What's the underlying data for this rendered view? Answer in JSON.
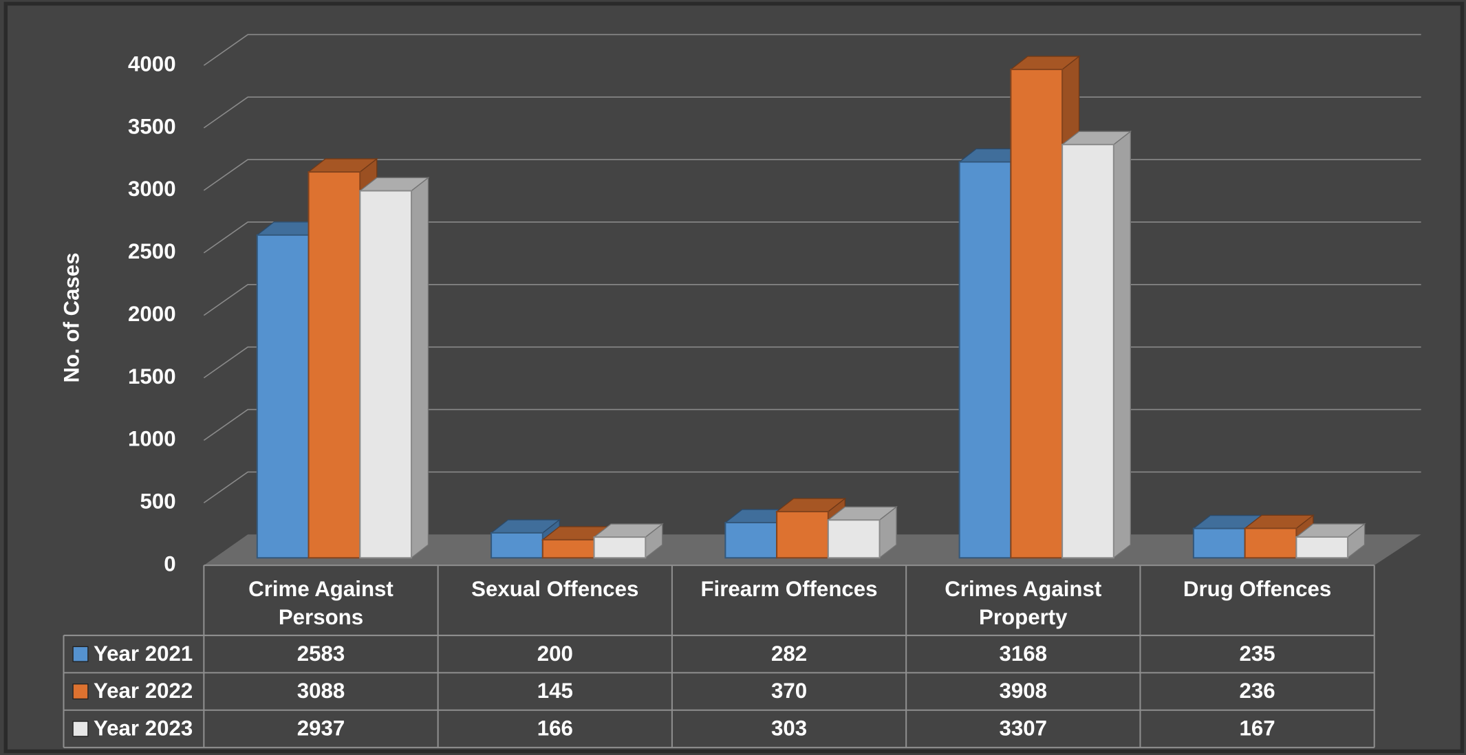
{
  "chart_data": {
    "type": "bar3d",
    "y_label": "No. of Cases",
    "categories": [
      "Crime Against Persons",
      "Sexual Offences",
      "Firearm Offences",
      "Crimes Against Property",
      "Drug Offences"
    ],
    "series": [
      {
        "name": "Year 2021",
        "color": "#5592cf",
        "values": [
          2583,
          200,
          282,
          3168,
          235
        ]
      },
      {
        "name": "Year 2022",
        "color": "#dd7230",
        "values": [
          3088,
          145,
          370,
          3908,
          236
        ]
      },
      {
        "name": "Year 2023",
        "color": "#e6e6e6",
        "values": [
          2937,
          166,
          303,
          3307,
          167
        ]
      }
    ],
    "ylim": [
      0,
      4000
    ],
    "yticks": [
      0,
      500,
      1000,
      1500,
      2000,
      2500,
      3000,
      3500,
      4000
    ],
    "grid": true,
    "data_table": true
  }
}
